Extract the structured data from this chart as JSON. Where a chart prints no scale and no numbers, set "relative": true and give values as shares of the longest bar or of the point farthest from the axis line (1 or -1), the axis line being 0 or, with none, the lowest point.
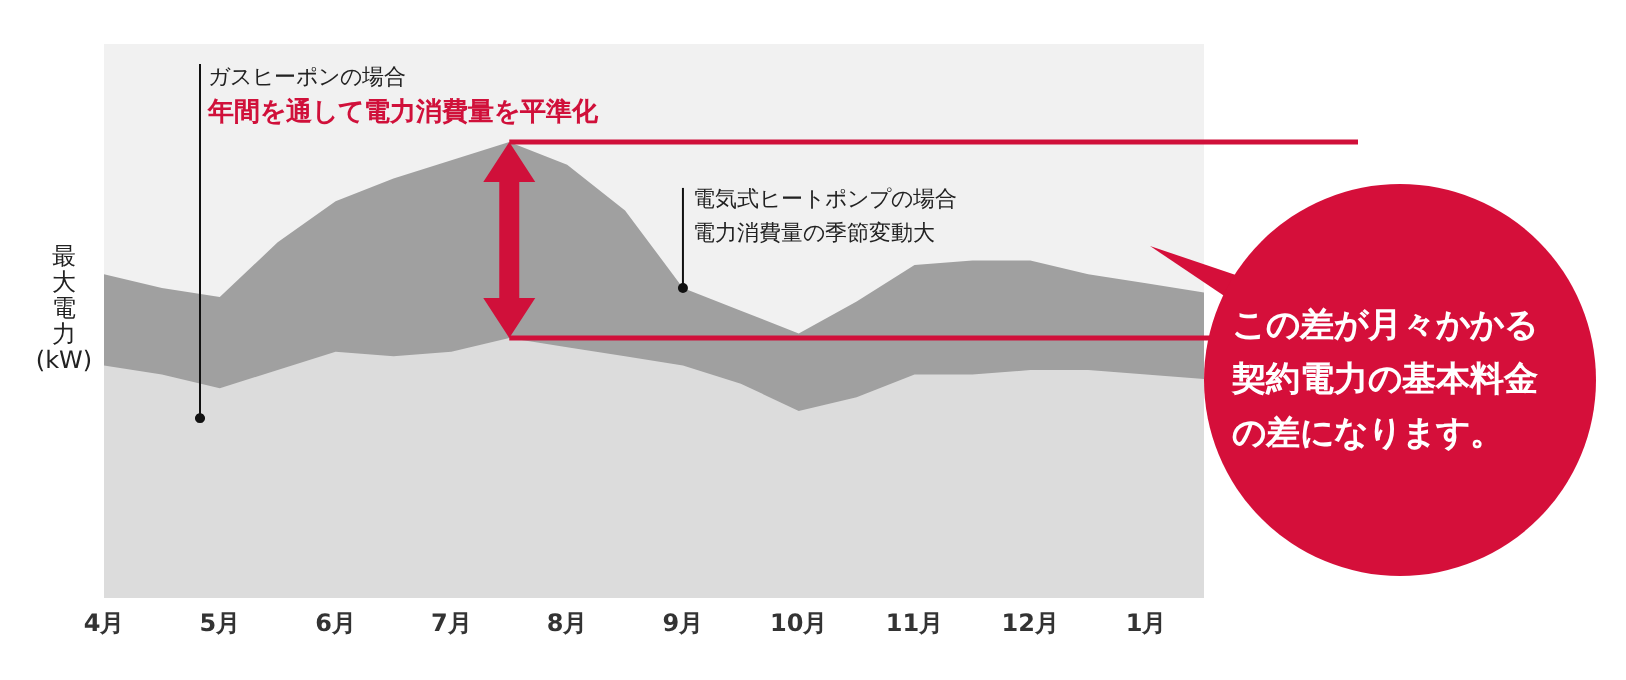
{
  "chart_data": {
    "type": "area",
    "relative": true,
    "ylabel": "最大電力(kW)",
    "categories": [
      "4月",
      null,
      "5月",
      null,
      "6月",
      null,
      "7月",
      null,
      "8月",
      null,
      "9月",
      null,
      "10月",
      null,
      "11月",
      null,
      "12月",
      null,
      "1月",
      null
    ],
    "series": [
      {
        "color": "#a0a0a0",
        "values": [
          0.71,
          0.68,
          0.66,
          0.78,
          0.87,
          0.92,
          0.96,
          1,
          0.95,
          0.85,
          0.68,
          0.63,
          0.58,
          0.65,
          0.73,
          0.74,
          0.74,
          0.71,
          0.69,
          0.67
        ]
      },
      {
        "color": "#dcdcdc",
        "values": [
          0.51,
          0.49,
          0.46,
          0.5,
          0.54,
          0.53,
          0.54,
          0.57,
          0.55,
          0.53,
          0.51,
          0.47,
          0.41,
          0.44,
          0.49,
          0.49,
          0.5,
          0.5,
          0.49,
          0.48
        ]
      }
    ],
    "ref_lines": [
      {
        "axis": "y",
        "value": 1,
        "color": "#d0103a"
      },
      {
        "axis": "y",
        "value": 0.57,
        "color": "#d0103a"
      }
    ],
    "annotations": [
      "ガスヒーポンの場合",
      "年間を通して電力消費量を平準化",
      {
        "text": "電気式ヒートポンプの場合",
        "x": "9月",
        "y": 0.68
      },
      "電力消費量の季節変動大",
      "この差が月々かかる契約電力の基本料金の差になります。"
    ]
  }
}
